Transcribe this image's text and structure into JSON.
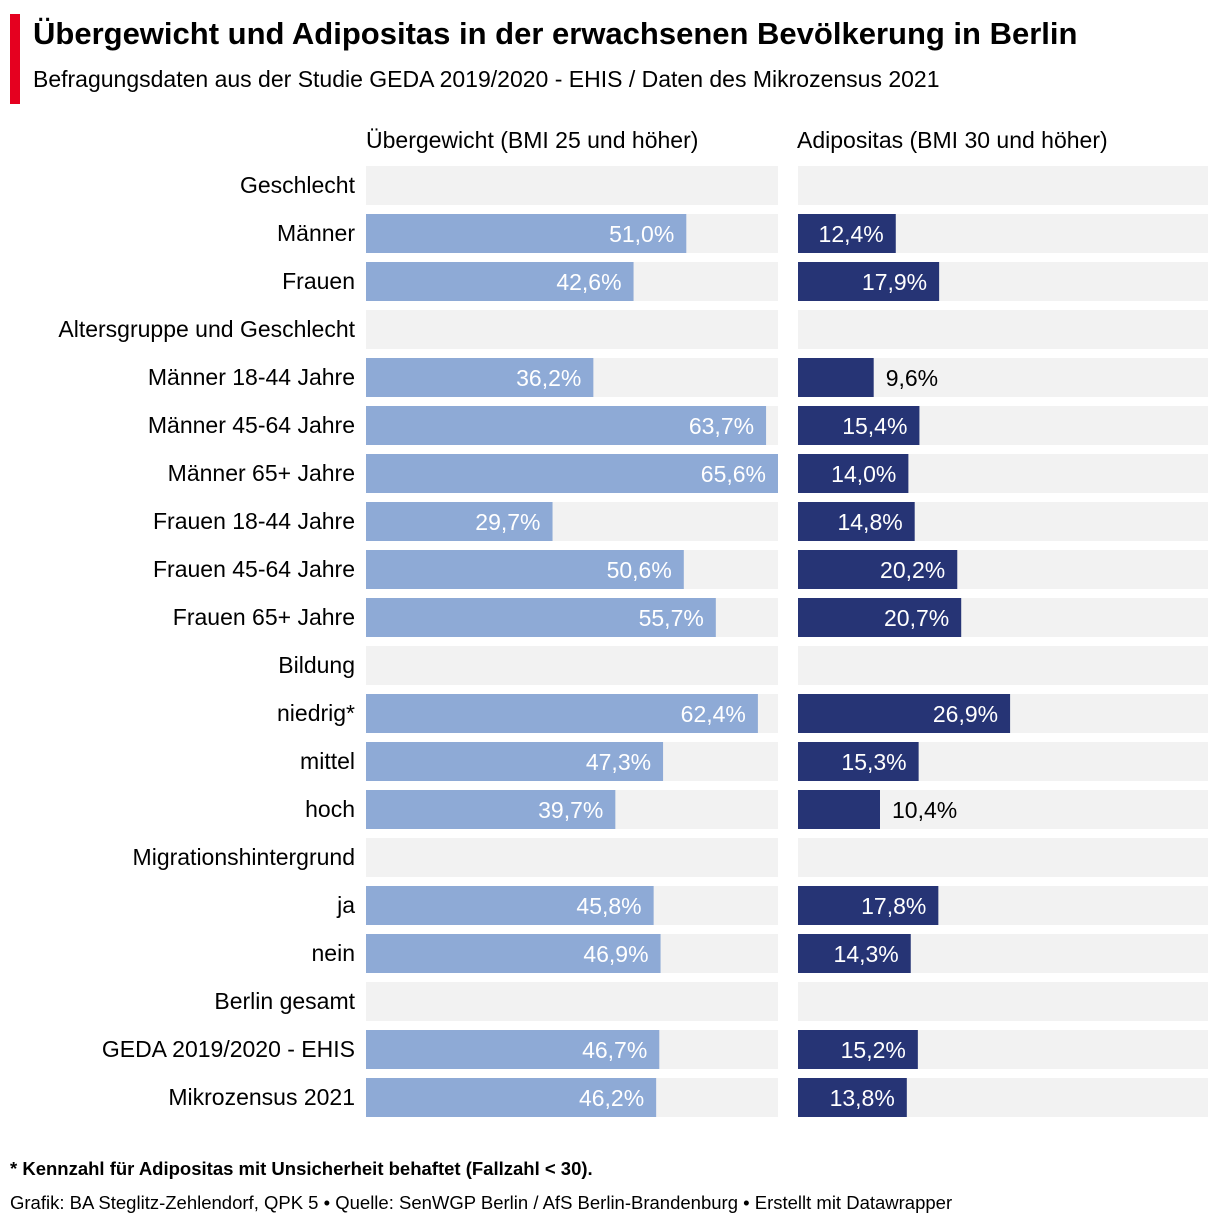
{
  "title": "Übergewicht und Adipositas in der erwachsenen Bevölkerung in Berlin",
  "subtitle": "Befragungsdaten aus der Studie GEDA 2019/2020 - EHIS / Daten des Mikrozensus 2021",
  "footnote": "* Kennzahl für Adipositas mit Unsicherheit behaftet (Fallzahl < 30).",
  "credits": "Grafik: BA Steglitz-Zehlendorf, QPK 5 • Quelle: SenWGP Berlin / AfS Berlin-Brandenburg • Erstellt mit Datawrapper",
  "colors": {
    "accent": "#e5001f",
    "overweight_bar": "#8eaad6",
    "obesity_bar": "#263475",
    "track": "#f2f2f2"
  },
  "chart_data": {
    "type": "bar",
    "orientation": "horizontal",
    "title": "Übergewicht und Adipositas in der erwachsenen Bevölkerung in Berlin",
    "value_suffix": "%",
    "decimal_separator": ",",
    "series": [
      {
        "name": "Übergewicht (BMI 25 und höher)",
        "xlim": [
          0,
          65.6
        ]
      },
      {
        "name": "Adipositas (BMI 30 und höher)",
        "xlim": [
          0,
          52.0
        ]
      }
    ],
    "rows": [
      {
        "label": "Geschlecht",
        "group": true
      },
      {
        "label": "Männer",
        "values": [
          51.0,
          12.4
        ]
      },
      {
        "label": "Frauen",
        "values": [
          42.6,
          17.9
        ]
      },
      {
        "label": "Altersgruppe und Geschlecht",
        "group": true
      },
      {
        "label": "Männer 18-44 Jahre",
        "values": [
          36.2,
          9.6
        ]
      },
      {
        "label": "Männer 45-64 Jahre",
        "values": [
          63.7,
          15.4
        ]
      },
      {
        "label": "Männer 65+ Jahre",
        "values": [
          65.6,
          14.0
        ]
      },
      {
        "label": "Frauen 18-44 Jahre",
        "values": [
          29.7,
          14.8
        ]
      },
      {
        "label": "Frauen 45-64 Jahre",
        "values": [
          50.6,
          20.2
        ]
      },
      {
        "label": "Frauen 65+ Jahre",
        "values": [
          55.7,
          20.7
        ]
      },
      {
        "label": "Bildung",
        "group": true
      },
      {
        "label": "niedrig*",
        "values": [
          62.4,
          26.9
        ]
      },
      {
        "label": "mittel",
        "values": [
          47.3,
          15.3
        ]
      },
      {
        "label": "hoch",
        "values": [
          39.7,
          10.4
        ]
      },
      {
        "label": "Migrationshintergrund",
        "group": true
      },
      {
        "label": "ja",
        "values": [
          45.8,
          17.8
        ]
      },
      {
        "label": "nein",
        "values": [
          46.9,
          14.3
        ]
      },
      {
        "label": "Berlin gesamt",
        "group": true
      },
      {
        "label": "GEDA 2019/2020 - EHIS",
        "values": [
          46.7,
          15.2
        ]
      },
      {
        "label": "Mikrozensus 2021",
        "values": [
          46.2,
          13.8
        ]
      }
    ]
  }
}
